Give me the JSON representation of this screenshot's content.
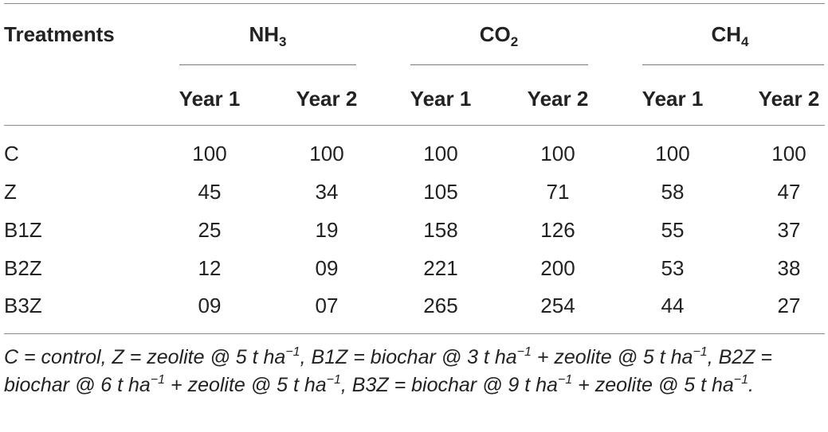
{
  "header": {
    "treatments": "Treatments",
    "groups": [
      {
        "base": "NH",
        "sub": "3"
      },
      {
        "base": "CO",
        "sub": "2"
      },
      {
        "base": "CH",
        "sub": "4"
      }
    ],
    "years": [
      "Year 1",
      "Year 2",
      "Year 1",
      "Year 2",
      "Year 1",
      "Year 2"
    ]
  },
  "rows": [
    {
      "label": "C",
      "values": [
        "100",
        "100",
        "100",
        "100",
        "100",
        "100"
      ]
    },
    {
      "label": "Z",
      "values": [
        "45",
        "34",
        "105",
        "71",
        "58",
        "47"
      ]
    },
    {
      "label": "B1Z",
      "values": [
        "25",
        "19",
        "158",
        "126",
        "55",
        "37"
      ]
    },
    {
      "label": "B2Z",
      "values": [
        "12",
        "09",
        "221",
        "200",
        "53",
        "38"
      ]
    },
    {
      "label": "B3Z",
      "values": [
        "09",
        "07",
        "265",
        "254",
        "44",
        "27"
      ]
    }
  ],
  "footnote": {
    "parts": [
      "C = control, Z = zeolite @ 5 t ha",
      "−1",
      ", B1Z = biochar @ 3 t ha",
      "−1",
      " + zeolite @ 5 t ha",
      "−1",
      ", B2Z = biochar @ 6 t ha",
      "−1",
      " + zeolite @ 5 t ha",
      "−1",
      ", B3Z = biochar @ 9 t ha",
      "−1",
      " + zeolite @ 5 t ha",
      "−1",
      "."
    ]
  }
}
